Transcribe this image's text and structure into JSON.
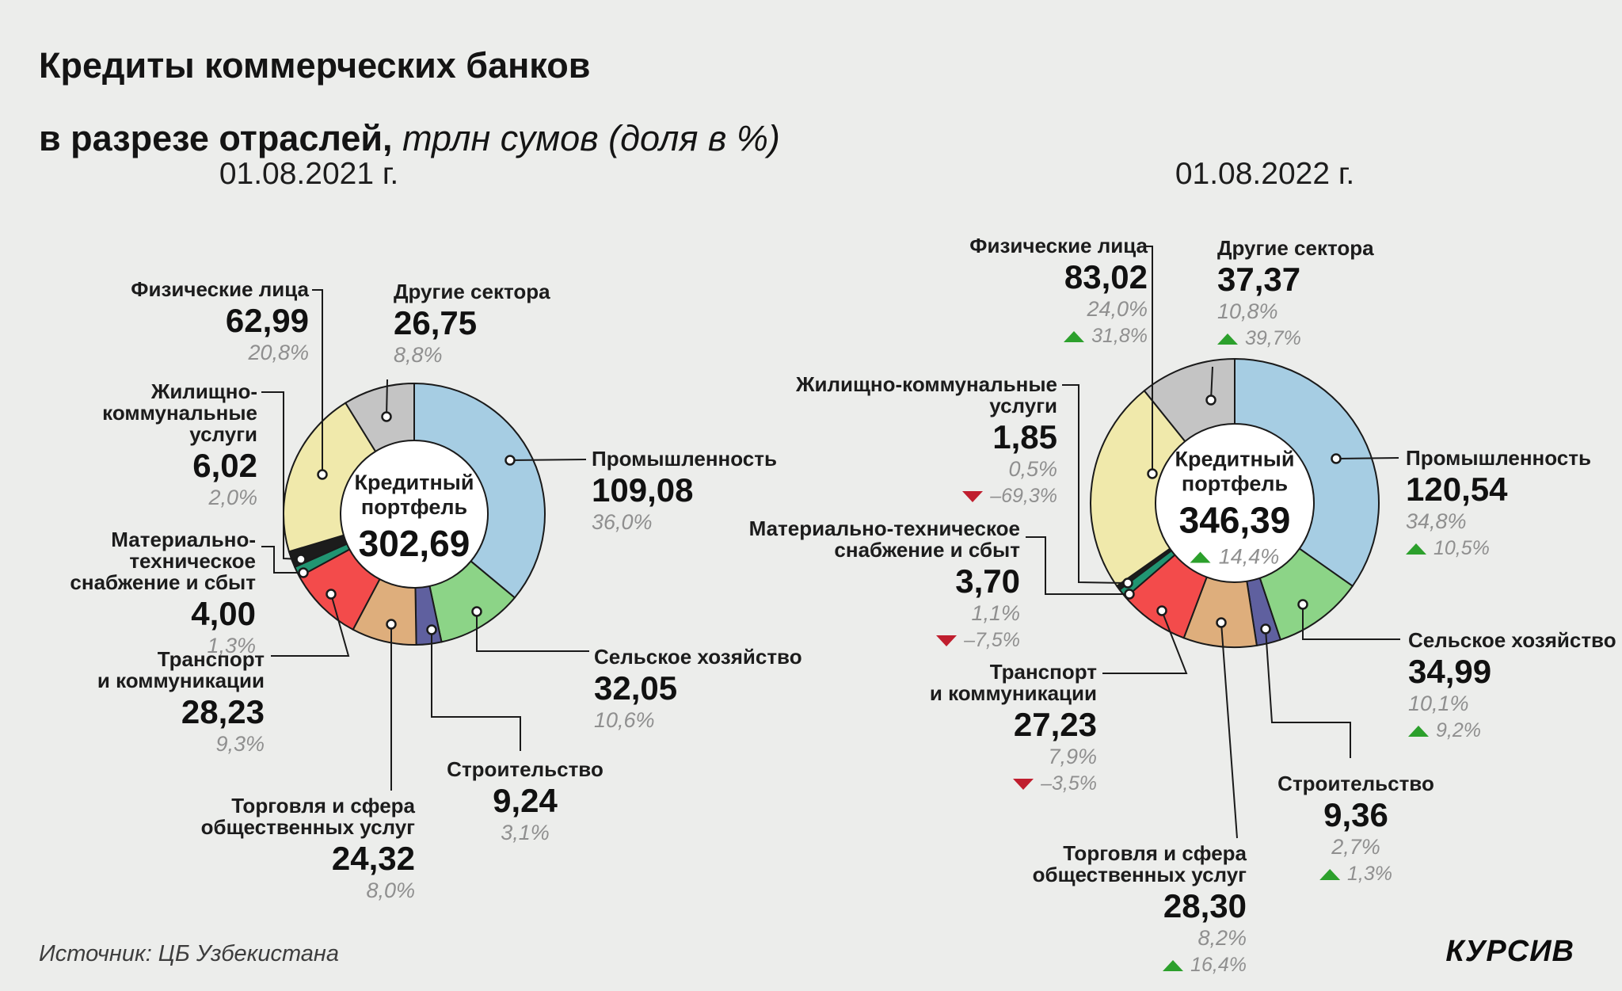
{
  "title": {
    "line1": "Кредиты коммерческих банков",
    "line2_bold": "в разрезе отраслей,",
    "line2_italic": " трлн сумов (доля в %)"
  },
  "source": "Источник: ЦБ Узбекистана",
  "brand": "КУРСИВ",
  "colors": {
    "background": "#ECEDEB",
    "line": "#1A1A1A",
    "up": "#2CA02C",
    "down": "#C01E2E",
    "share_text": "#8F8F8F",
    "text": "#1C1C1C"
  },
  "chart_data": [
    {
      "type": "pie",
      "variant": "donut",
      "title": "01.08.2021 г.",
      "unit": "трлн сумов (доля в %)",
      "center": {
        "label": "Кредитный\nпортфель",
        "total": "302,69",
        "change": null
      },
      "slices": [
        {
          "id": "industry",
          "label": "Промышленность",
          "value": "109,08",
          "share": "36,0%",
          "share_num": 36.0,
          "color": "#A6CDE3",
          "change": null
        },
        {
          "id": "agriculture",
          "label": "Сельское хозяйство",
          "value": "32,05",
          "share": "10,6%",
          "share_num": 10.6,
          "color": "#8CD487",
          "change": null
        },
        {
          "id": "construction",
          "label": "Строительство",
          "value": "9,24",
          "share": "3,1%",
          "share_num": 3.1,
          "color": "#5F609F",
          "change": null
        },
        {
          "id": "trade",
          "label": "Торговля и сфера\nобщественных услуг",
          "value": "24,32",
          "share": "8,0%",
          "share_num": 8.0,
          "color": "#DEAE7C",
          "change": null
        },
        {
          "id": "transport",
          "label": "Транспорт\nи коммуникации",
          "value": "28,23",
          "share": "9,3%",
          "share_num": 9.3,
          "color": "#F34B4B",
          "change": null
        },
        {
          "id": "supply",
          "label": "Материально-техническое\nснабжение и сбыт",
          "value": "4,00",
          "share": "1,3%",
          "share_num": 1.3,
          "color": "#219572",
          "change": null
        },
        {
          "id": "utilities",
          "label": "Жилищно-коммунальные\nуслуги",
          "value": "6,02",
          "share": "2,0%",
          "share_num": 2.0,
          "color": "#1C1C1C",
          "change": null
        },
        {
          "id": "individuals",
          "label": "Физические лица",
          "value": "62,99",
          "share": "20,8%",
          "share_num": 20.8,
          "color": "#F0E9AB",
          "change": null
        },
        {
          "id": "other",
          "label": "Другие сектора",
          "value": "26,75",
          "share": "8,8%",
          "share_num": 8.8,
          "color": "#C4C4C4",
          "change": null
        }
      ]
    },
    {
      "type": "pie",
      "variant": "donut",
      "title": "01.08.2022 г.",
      "unit": "трлн сумов (доля в %)",
      "center": {
        "label": "Кредитный\nпортфель",
        "total": "346,39",
        "change": {
          "dir": "up",
          "text": "14,4%"
        }
      },
      "slices": [
        {
          "id": "industry",
          "label": "Промышленность",
          "value": "120,54",
          "share": "34,8%",
          "share_num": 34.8,
          "color": "#A6CDE3",
          "change": {
            "dir": "up",
            "text": "10,5%"
          }
        },
        {
          "id": "agriculture",
          "label": "Сельское хозяйство",
          "value": "34,99",
          "share": "10,1%",
          "share_num": 10.1,
          "color": "#8CD487",
          "change": {
            "dir": "up",
            "text": "9,2%"
          }
        },
        {
          "id": "construction",
          "label": "Строительство",
          "value": "9,36",
          "share": "2,7%",
          "share_num": 2.7,
          "color": "#5F609F",
          "change": {
            "dir": "up",
            "text": "1,3%"
          }
        },
        {
          "id": "trade",
          "label": "Торговля и сфера\nобщественных услуг",
          "value": "28,30",
          "share": "8,2%",
          "share_num": 8.2,
          "color": "#DEAE7C",
          "change": {
            "dir": "up",
            "text": "16,4%"
          }
        },
        {
          "id": "transport",
          "label": "Транспорт\nи коммуникации",
          "value": "27,23",
          "share": "7,9%",
          "share_num": 7.9,
          "color": "#F34B4B",
          "change": {
            "dir": "down",
            "text": "–3,5%"
          }
        },
        {
          "id": "supply",
          "label": "Материально-техническое\nснабжение и сбыт",
          "value": "3,70",
          "share": "1,1%",
          "share_num": 1.1,
          "color": "#219572",
          "change": {
            "dir": "down",
            "text": "–7,5%"
          }
        },
        {
          "id": "utilities",
          "label": "Жилищно-коммунальные\nуслуги",
          "value": "1,85",
          "share": "0,5%",
          "share_num": 0.5,
          "color": "#1C1C1C",
          "change": {
            "dir": "down",
            "text": "–69,3%"
          }
        },
        {
          "id": "individuals",
          "label": "Физические лица",
          "value": "83,02",
          "share": "24,0%",
          "share_num": 24.0,
          "color": "#F0E9AB",
          "change": {
            "dir": "up",
            "text": "31,8%"
          }
        },
        {
          "id": "other",
          "label": "Другие сектора",
          "value": "37,37",
          "share": "10,8%",
          "share_num": 10.8,
          "color": "#C4C4C4",
          "change": {
            "dir": "up",
            "text": "39,7%"
          }
        }
      ]
    }
  ]
}
